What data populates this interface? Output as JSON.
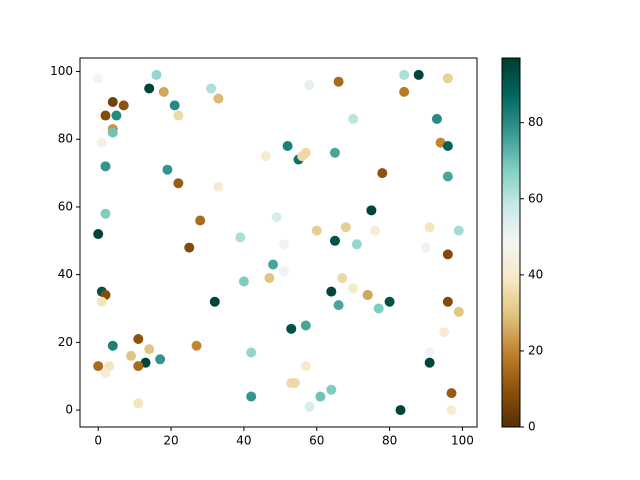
{
  "chart_data": {
    "type": "scatter",
    "x": [
      0,
      16,
      18,
      14,
      21,
      22,
      4,
      7,
      2,
      5,
      4,
      4,
      1,
      2,
      31,
      33,
      19,
      22,
      33,
      2,
      0,
      28,
      25,
      39,
      49,
      51,
      58,
      66,
      52,
      55,
      56,
      57,
      46,
      65,
      70,
      84,
      88,
      96,
      84,
      93,
      94,
      96,
      78,
      96,
      75,
      68,
      60,
      65,
      71,
      76,
      91,
      99,
      90,
      96,
      48,
      47,
      51,
      40,
      67,
      64,
      70,
      74,
      74,
      80,
      77,
      66,
      1,
      2,
      1,
      32,
      96,
      99,
      53,
      57,
      95,
      27,
      4,
      11,
      14,
      9,
      17,
      13,
      11,
      0,
      3,
      2,
      42,
      91,
      91,
      57,
      53,
      54,
      97,
      42,
      61,
      64,
      58,
      83,
      97,
      11
    ],
    "values": [
      98,
      99,
      94,
      95,
      90,
      87,
      91,
      90,
      87,
      87,
      83,
      82,
      79,
      72,
      95,
      92,
      71,
      67,
      66,
      58,
      52,
      56,
      48,
      51,
      57,
      49,
      96,
      97,
      78,
      74,
      75,
      76,
      75,
      76,
      86,
      99,
      99,
      98,
      94,
      86,
      79,
      78,
      70,
      69,
      59,
      54,
      53,
      50,
      49,
      53,
      54,
      53,
      48,
      46,
      43,
      39,
      41,
      38,
      39,
      35,
      36,
      34,
      34,
      32,
      30,
      31,
      35,
      34,
      32,
      32,
      32,
      29,
      24,
      25,
      23,
      19,
      19,
      21,
      18,
      16,
      15,
      14,
      13,
      13,
      13,
      11,
      17,
      17,
      14,
      13,
      8,
      8,
      5,
      4,
      4,
      6,
      1,
      0,
      0,
      2
    ],
    "color_values": [
      47,
      65,
      25,
      95,
      80,
      35,
      5,
      10,
      8,
      80,
      22,
      70,
      45,
      78,
      62,
      28,
      78,
      12,
      42,
      68,
      95,
      15,
      8,
      62,
      55,
      50,
      52,
      15,
      82,
      85,
      35,
      35,
      42,
      75,
      60,
      62,
      95,
      33,
      18,
      80,
      20,
      88,
      10,
      75,
      95,
      32,
      32,
      92,
      65,
      42,
      38,
      63,
      50,
      8,
      75,
      30,
      50,
      68,
      35,
      95,
      40,
      22,
      25,
      92,
      68,
      75,
      92,
      8,
      38,
      95,
      8,
      30,
      92,
      75,
      42,
      20,
      82,
      10,
      30,
      30,
      78,
      95,
      15,
      15,
      38,
      42,
      65,
      50,
      95,
      40,
      35,
      35,
      12,
      78,
      70,
      68,
      55,
      95,
      42,
      38
    ],
    "colormap": [
      "#543005",
      "#8c510a",
      "#bf812d",
      "#dfc27d",
      "#f6e8c3",
      "#f5f5f5",
      "#c7eae5",
      "#80cdc1",
      "#35978f",
      "#01665e",
      "#003c30"
    ],
    "clim": [
      0,
      97
    ],
    "cticks": [
      0,
      20,
      40,
      60,
      80
    ],
    "xlim": [
      -5,
      104
    ],
    "xticks": [
      0,
      20,
      40,
      60,
      80,
      100
    ],
    "ylim": [
      -5,
      104
    ],
    "yticks": [
      0,
      20,
      40,
      60,
      80,
      100
    ]
  }
}
